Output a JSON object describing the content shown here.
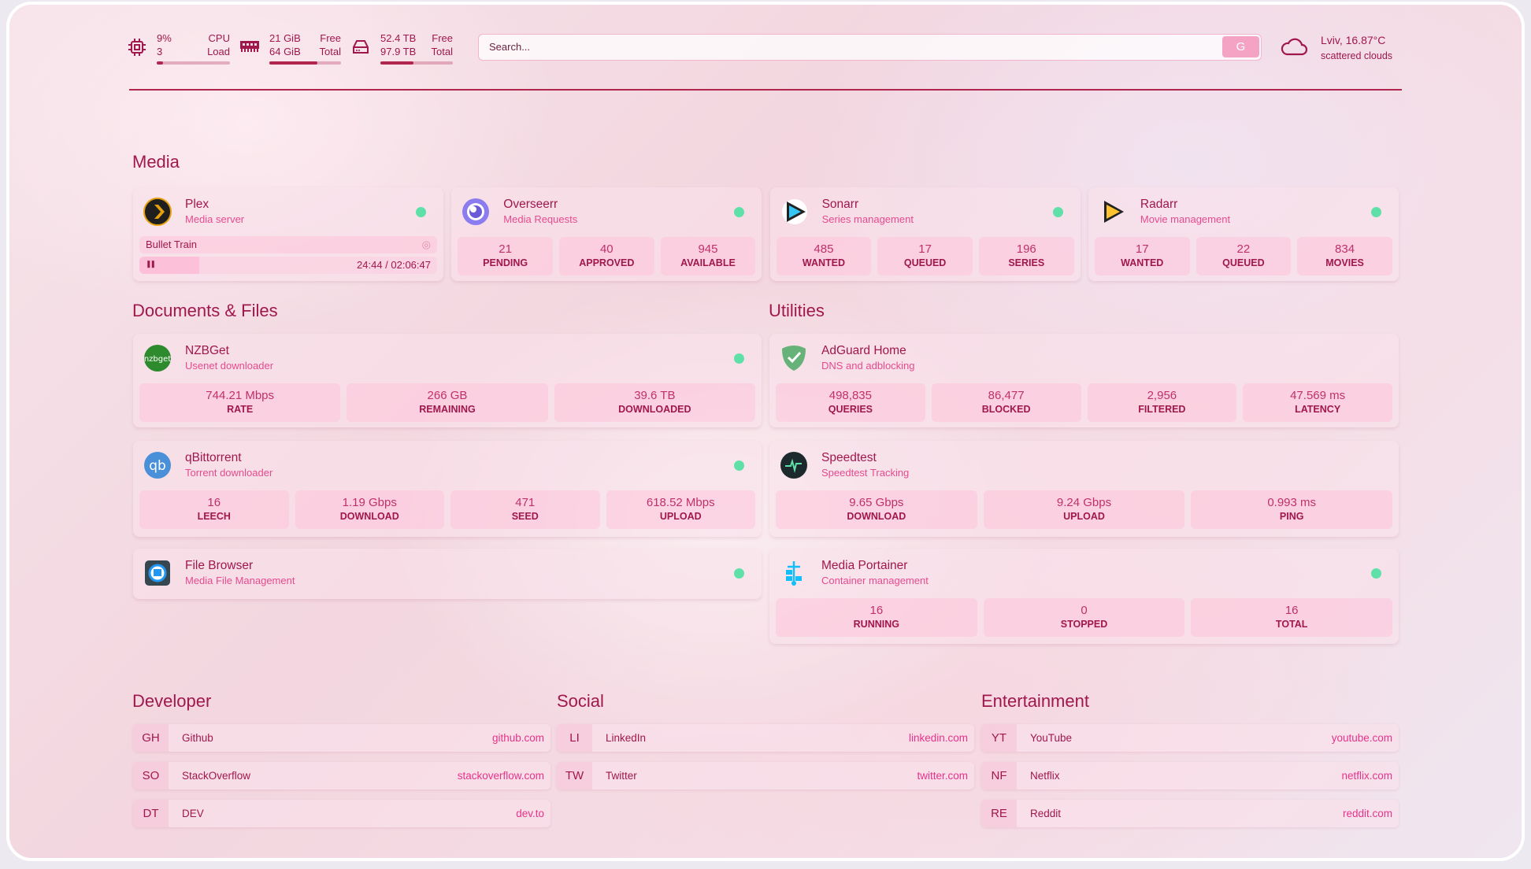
{
  "header": {
    "cpu": {
      "icon": "cpu-icon",
      "value": "9%",
      "sub": "3",
      "label1": "CPU",
      "label2": "Load",
      "percent": 9
    },
    "ram": {
      "icon": "memory-icon",
      "value": "21 GiB",
      "sub": "64 GiB",
      "label1": "Free",
      "label2": "Total",
      "percent": 67
    },
    "disk": {
      "icon": "hard-drive-icon",
      "value": "52.4 TB",
      "sub": "97.9 TB",
      "label1": "Free",
      "label2": "Total",
      "percent": 46
    },
    "search": {
      "placeholder": "Search...",
      "button": "G"
    },
    "weather": {
      "icon": "cloud-icon",
      "location": "Lviv, 16.87°C",
      "condition": "scattered clouds"
    }
  },
  "colors": {
    "accent": "#a0174c",
    "subtitle": "#e64a8f",
    "status_up": "#5fe0a8"
  },
  "sections": {
    "media": "Media",
    "documents": "Documents & Files",
    "utilities": "Utilities",
    "developer": "Developer",
    "social": "Social",
    "entertainment": "Entertainment"
  },
  "media": [
    {
      "name": "Plex",
      "desc": "Media server",
      "icon": "plex-icon",
      "status": "up",
      "now_playing": {
        "title": "Bullet Train",
        "state": "playing",
        "time": "24:44 / 02:06:47",
        "progress": 20
      }
    },
    {
      "name": "Overseerr",
      "desc": "Media Requests",
      "icon": "overseerr-icon",
      "status": "up",
      "stats": [
        {
          "v": "21",
          "k": "PENDING"
        },
        {
          "v": "40",
          "k": "APPROVED"
        },
        {
          "v": "945",
          "k": "AVAILABLE"
        }
      ]
    },
    {
      "name": "Sonarr",
      "desc": "Series management",
      "icon": "sonarr-icon",
      "status": "up",
      "stats": [
        {
          "v": "485",
          "k": "WANTED"
        },
        {
          "v": "17",
          "k": "QUEUED"
        },
        {
          "v": "196",
          "k": "SERIES"
        }
      ]
    },
    {
      "name": "Radarr",
      "desc": "Movie management",
      "icon": "radarr-icon",
      "status": "up",
      "stats": [
        {
          "v": "17",
          "k": "WANTED"
        },
        {
          "v": "22",
          "k": "QUEUED"
        },
        {
          "v": "834",
          "k": "MOVIES"
        }
      ]
    }
  ],
  "documents": [
    {
      "name": "NZBGet",
      "desc": "Usenet downloader",
      "icon": "nzbget-icon",
      "status": "up",
      "stats": [
        {
          "v": "744.21 Mbps",
          "k": "RATE"
        },
        {
          "v": "266 GB",
          "k": "REMAINING"
        },
        {
          "v": "39.6 TB",
          "k": "DOWNLOADED"
        }
      ]
    },
    {
      "name": "qBittorrent",
      "desc": "Torrent downloader",
      "icon": "qbittorrent-icon",
      "status": "up",
      "stats": [
        {
          "v": "16",
          "k": "LEECH"
        },
        {
          "v": "1.19 Gbps",
          "k": "DOWNLOAD"
        },
        {
          "v": "471",
          "k": "SEED"
        },
        {
          "v": "618.52 Mbps",
          "k": "UPLOAD"
        }
      ]
    },
    {
      "name": "File Browser",
      "desc": "Media File Management",
      "icon": "file-browser-icon",
      "status": "up"
    }
  ],
  "utilities": [
    {
      "name": "AdGuard Home",
      "desc": "DNS and adblocking",
      "icon": "adguard-icon",
      "stats": [
        {
          "v": "498,835",
          "k": "QUERIES"
        },
        {
          "v": "86,477",
          "k": "BLOCKED"
        },
        {
          "v": "2,956",
          "k": "FILTERED"
        },
        {
          "v": "47.569 ms",
          "k": "LATENCY"
        }
      ]
    },
    {
      "name": "Speedtest",
      "desc": "Speedtest Tracking",
      "icon": "speedtest-icon",
      "stats": [
        {
          "v": "9.65 Gbps",
          "k": "DOWNLOAD"
        },
        {
          "v": "9.24 Gbps",
          "k": "UPLOAD"
        },
        {
          "v": "0.993 ms",
          "k": "PING"
        }
      ]
    },
    {
      "name": "Media Portainer",
      "desc": "Container management",
      "icon": "portainer-icon",
      "status": "up",
      "stats": [
        {
          "v": "16",
          "k": "RUNNING"
        },
        {
          "v": "0",
          "k": "STOPPED"
        },
        {
          "v": "16",
          "k": "TOTAL"
        }
      ]
    }
  ],
  "bookmarks": {
    "developer": [
      {
        "abbr": "GH",
        "name": "Github",
        "url": "github.com"
      },
      {
        "abbr": "SO",
        "name": "StackOverflow",
        "url": "stackoverflow.com"
      },
      {
        "abbr": "DT",
        "name": "DEV",
        "url": "dev.to"
      }
    ],
    "social": [
      {
        "abbr": "LI",
        "name": "LinkedIn",
        "url": "linkedin.com"
      },
      {
        "abbr": "TW",
        "name": "Twitter",
        "url": "twitter.com"
      }
    ],
    "entertainment": [
      {
        "abbr": "YT",
        "name": "YouTube",
        "url": "youtube.com"
      },
      {
        "abbr": "NF",
        "name": "Netflix",
        "url": "netflix.com"
      },
      {
        "abbr": "RE",
        "name": "Reddit",
        "url": "reddit.com"
      }
    ]
  }
}
